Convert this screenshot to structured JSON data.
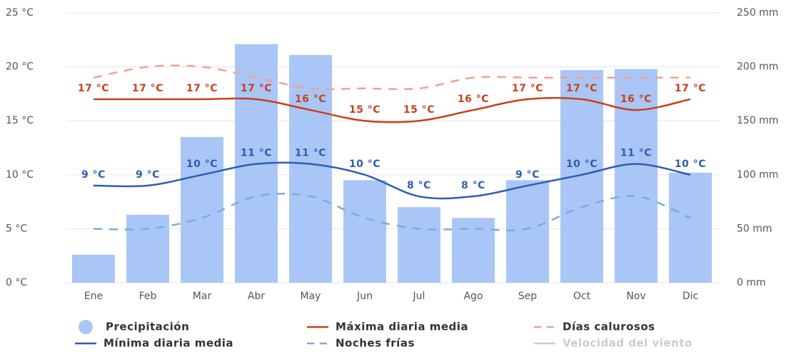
{
  "chart_data": {
    "type": "bar-line",
    "categories": [
      "Ene",
      "Feb",
      "Mar",
      "Abr",
      "May",
      "Jun",
      "Jul",
      "Ago",
      "Sep",
      "Oct",
      "Nov",
      "Dic"
    ],
    "ylim": [
      0,
      25
    ],
    "yticks": [
      {
        "value": 0,
        "label": "0 °C"
      },
      {
        "value": 5,
        "label": "5 °C"
      },
      {
        "value": 10,
        "label": "10 °C"
      },
      {
        "value": 15,
        "label": "15 °C"
      },
      {
        "value": 20,
        "label": "20 °C"
      },
      {
        "value": 25,
        "label": "25 °C"
      }
    ],
    "y2lim": [
      0,
      250
    ],
    "y2ticks": [
      {
        "value": 0,
        "label": "0 mm"
      },
      {
        "value": 50,
        "label": "50 mm"
      },
      {
        "value": 100,
        "label": "100 mm"
      },
      {
        "value": 150,
        "label": "150 mm"
      },
      {
        "value": 200,
        "label": "200 mm"
      },
      {
        "value": 250,
        "label": "250 mm"
      }
    ],
    "grid": true,
    "series": [
      {
        "name": "Precipitación",
        "kind": "bar",
        "axis": "y2",
        "color": "#a9c6f6",
        "values": [
          26,
          63,
          135,
          221,
          211,
          95,
          70,
          60,
          95,
          197,
          198,
          102
        ]
      },
      {
        "name": "Máxima diaria media",
        "kind": "line",
        "color": "#c9401c",
        "values": [
          17,
          17,
          17,
          17,
          16,
          15,
          15,
          16,
          17,
          17,
          16,
          17
        ],
        "value_labels": [
          "17 °C",
          "17 °C",
          "17 °C",
          "17 °C",
          "16 °C",
          "15 °C",
          "15 °C",
          "16 °C",
          "17 °C",
          "17 °C",
          "16 °C",
          "17 °C"
        ]
      },
      {
        "name": "Días calurosos",
        "kind": "dashed",
        "color": "#f3a08e",
        "values": [
          19,
          20,
          20,
          19,
          18,
          18,
          18,
          19,
          19,
          19,
          19,
          19
        ]
      },
      {
        "name": "Mínima diaria media",
        "kind": "line",
        "color": "#2f5db3",
        "values": [
          9,
          9,
          10,
          11,
          11,
          10,
          8,
          8,
          9,
          10,
          11,
          10
        ],
        "value_labels": [
          "9 °C",
          "9 °C",
          "10 °C",
          "11 °C",
          "11 °C",
          "10 °C",
          "8 °C",
          "8 °C",
          "9 °C",
          "10 °C",
          "11 °C",
          "10 °C"
        ]
      },
      {
        "name": "Noches frías",
        "kind": "dashed",
        "color": "#79acdc",
        "values": [
          5,
          5,
          6,
          8,
          8,
          6,
          5,
          5,
          5,
          7,
          8,
          6
        ]
      },
      {
        "name": "Velocidad del viento",
        "kind": "line",
        "color": "#cccccc",
        "visible": false
      }
    ]
  }
}
